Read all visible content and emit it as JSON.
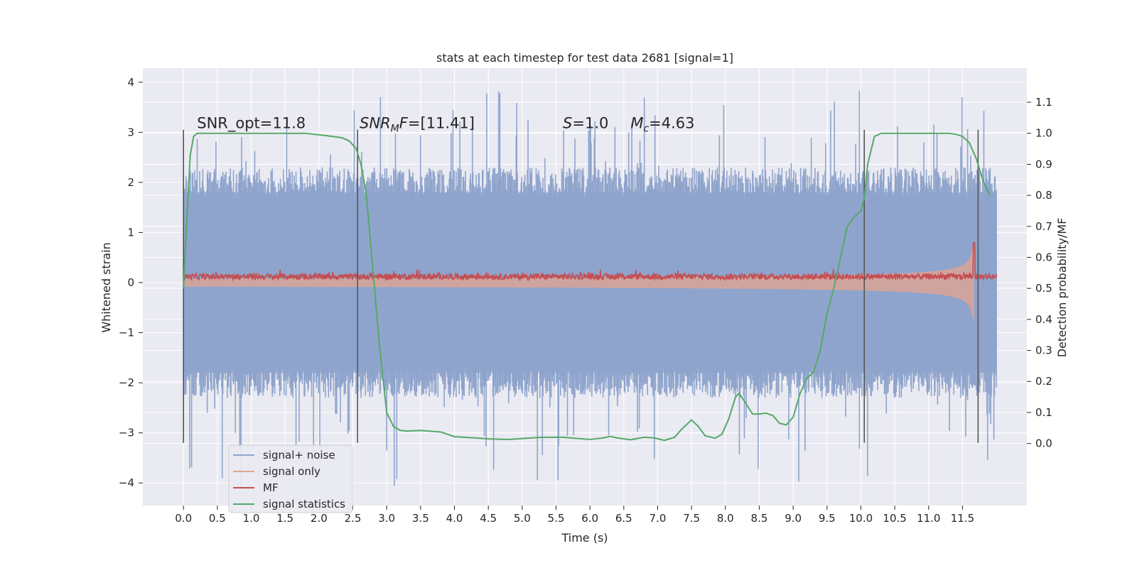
{
  "chart_data": {
    "type": "line",
    "title": "stats at each timestep for test data 2681 [signal=1]",
    "xlabel": "Time (s)",
    "ylabel": "Whitened strain",
    "ylabel_right": "Detection probability/MF",
    "xlim": [
      -0.6,
      12.45
    ],
    "ylim": [
      -4.45,
      4.28
    ],
    "ylim_right": [
      -0.2,
      1.21
    ],
    "x_ticks": [
      "0.0",
      "0.5",
      "1.0",
      "1.5",
      "2.0",
      "2.5",
      "3.0",
      "3.5",
      "4.0",
      "4.5",
      "5.0",
      "5.5",
      "6.0",
      "6.5",
      "7.0",
      "7.5",
      "8.0",
      "8.5",
      "9.0",
      "9.5",
      "10.0",
      "10.5",
      "11.0",
      "11.5"
    ],
    "y_ticks_left": [
      "4",
      "3",
      "2",
      "1",
      "0",
      "−1",
      "−2",
      "−3",
      "−4"
    ],
    "y_ticks_right": [
      "1.1",
      "1.0",
      "0.9",
      "0.8",
      "0.7",
      "0.6",
      "0.5",
      "0.4",
      "0.3",
      "0.2",
      "0.1",
      "0.0"
    ],
    "grid": true,
    "legend_position": "lower-left",
    "annotations": [
      {
        "text": "SNR_opt=11.8",
        "x": 0.2,
        "y": 3.08
      },
      {
        "text": "SNR_MF=[11.41]",
        "x": 2.6,
        "y": 3.08
      },
      {
        "text": "S=1.0",
        "x": 5.6,
        "y": 3.08
      },
      {
        "text": "M_c=4.63",
        "x": 6.6,
        "y": 3.08
      }
    ],
    "vertical_markers": [
      0.0,
      2.57,
      10.05,
      11.73
    ],
    "marker_range": [
      -3.2,
      3.05
    ],
    "series": [
      {
        "name": "signal+ noise",
        "color": "#8fa4cc",
        "axis": "left",
        "x_range": [
          0.0,
          12.0
        ],
        "envelope": {
          "typical_peak": 2.3,
          "max_peak": 3.9,
          "min_trough": -4.1
        }
      },
      {
        "name": "signal only",
        "color": "#e5a48f",
        "axis": "left",
        "x_range": [
          0.0,
          11.7
        ],
        "envelope": {
          "start_amplitude": 0.08,
          "end_amplitude": 1.15,
          "merger_time": 11.67
        }
      },
      {
        "name": "MF",
        "color": "#c44e52",
        "axis": "left",
        "x_range": [
          0.0,
          12.0
        ],
        "baseline": 0.12,
        "noise_amplitude": 0.1,
        "peak": {
          "x": 11.67,
          "y": 0.8
        }
      },
      {
        "name": "signal statistics",
        "color": "#55a868",
        "axis": "right",
        "x": [
          0.0,
          0.05,
          0.1,
          0.15,
          0.2,
          0.4,
          0.6,
          1.0,
          1.5,
          1.8,
          2.0,
          2.2,
          2.35,
          2.45,
          2.55,
          2.62,
          2.7,
          2.8,
          2.9,
          3.0,
          3.1,
          3.2,
          3.3,
          3.5,
          3.8,
          4.0,
          4.3,
          4.5,
          4.8,
          5.0,
          5.3,
          5.6,
          6.0,
          6.2,
          6.3,
          6.4,
          6.6,
          6.8,
          6.95,
          7.1,
          7.25,
          7.35,
          7.5,
          7.6,
          7.7,
          7.85,
          7.95,
          8.05,
          8.15,
          8.2,
          8.3,
          8.4,
          8.5,
          8.6,
          8.7,
          8.8,
          8.9,
          9.0,
          9.1,
          9.2,
          9.3,
          9.4,
          9.5,
          9.6,
          9.65,
          9.7,
          9.8,
          9.9,
          10.0,
          10.05,
          10.1,
          10.2,
          10.3,
          10.5,
          11.0,
          11.3,
          11.4,
          11.5,
          11.6,
          11.7,
          11.8,
          11.9
        ],
        "y": [
          0.5,
          0.72,
          0.93,
          0.99,
          1.0,
          1.0,
          1.0,
          1.0,
          1.0,
          1.0,
          0.995,
          0.99,
          0.985,
          0.975,
          0.95,
          0.9,
          0.8,
          0.55,
          0.3,
          0.1,
          0.055,
          0.042,
          0.04,
          0.042,
          0.037,
          0.022,
          0.018,
          0.015,
          0.013,
          0.016,
          0.02,
          0.02,
          0.013,
          0.018,
          0.023,
          0.018,
          0.012,
          0.02,
          0.018,
          0.01,
          0.02,
          0.045,
          0.076,
          0.055,
          0.025,
          0.017,
          0.03,
          0.08,
          0.15,
          0.162,
          0.13,
          0.095,
          0.095,
          0.098,
          0.09,
          0.065,
          0.06,
          0.085,
          0.16,
          0.21,
          0.23,
          0.3,
          0.42,
          0.5,
          0.55,
          0.6,
          0.7,
          0.73,
          0.75,
          0.79,
          0.9,
          0.99,
          1.0,
          1.0,
          1.0,
          1.0,
          0.997,
          0.99,
          0.97,
          0.92,
          0.85,
          0.8
        ]
      }
    ]
  }
}
